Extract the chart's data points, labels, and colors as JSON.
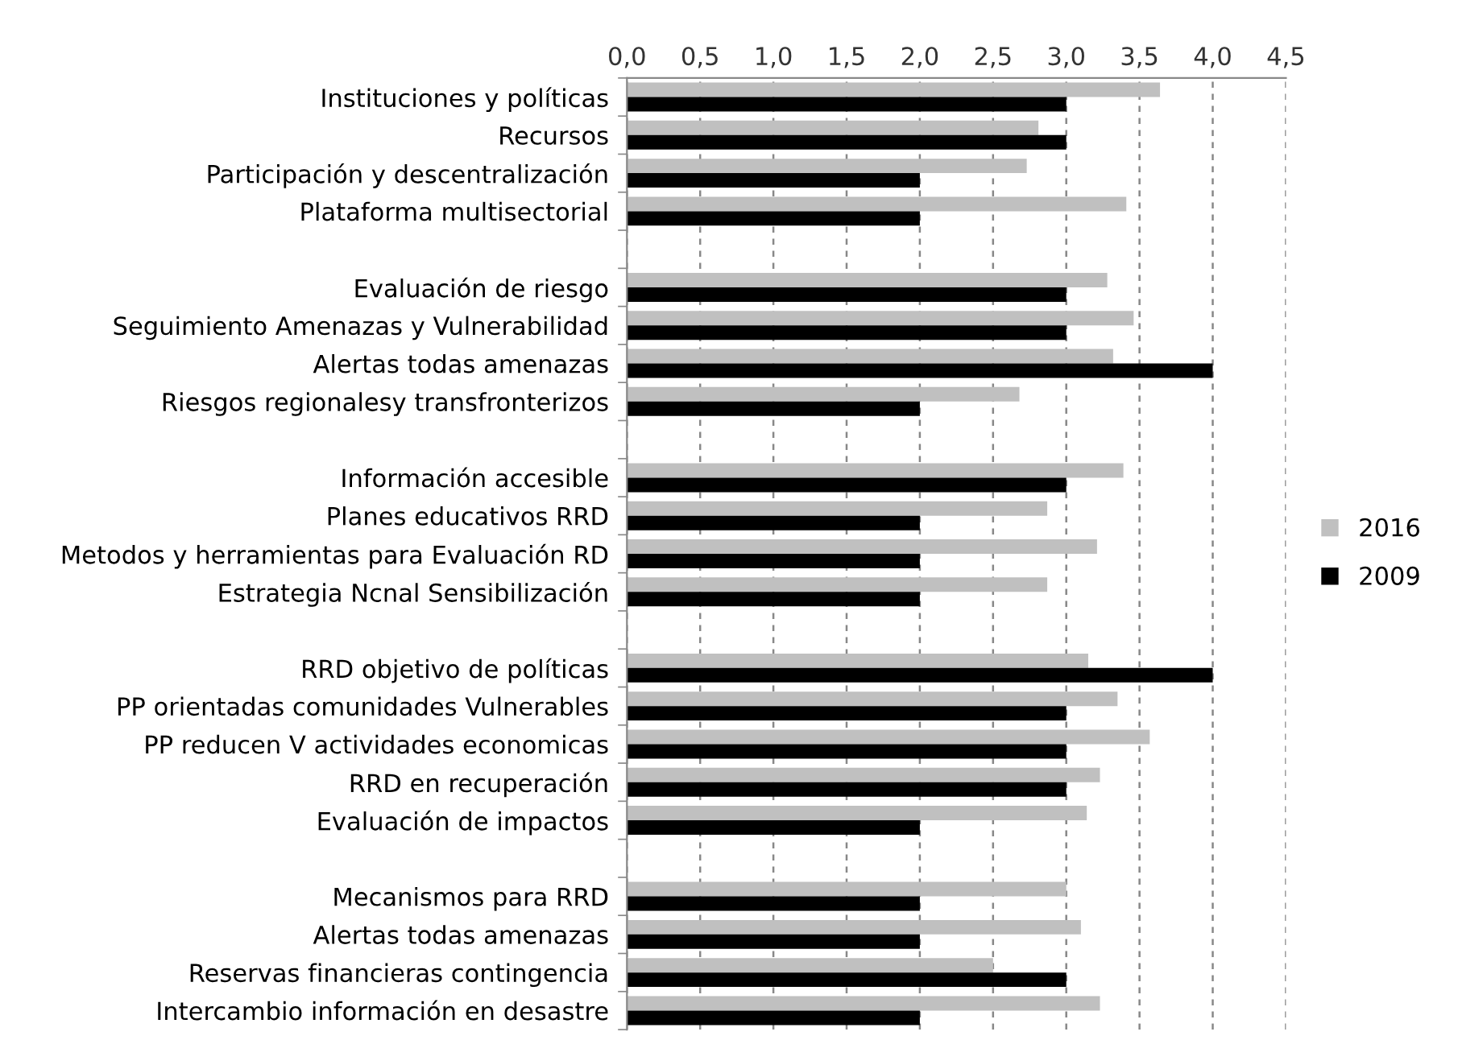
{
  "chart_data": {
    "type": "bar",
    "orientation": "horizontal",
    "categories": [
      "Instituciones y políticas",
      "Recursos",
      "Participación y descentralización",
      "Plataforma multisectorial",
      null,
      "Evaluación de riesgo",
      "Seguimiento Amenazas y Vulnerabilidad",
      "Alertas todas amenazas",
      "Riesgos regionalesy transfronterizos",
      null,
      "Información accesible",
      "Planes educativos RRD",
      "Metodos y herramientas para Evaluación RD",
      "Estrategia Ncnal Sensibilización",
      null,
      "RRD objetivo de políticas",
      "PP orientadas comunidades Vulnerables",
      "PP reducen V actividades economicas",
      "RRD en recuperación",
      "Evaluación de impactos",
      null,
      "Mecanismos para RRD",
      "Alertas todas amenazas",
      "Reservas financieras contingencia",
      "Intercambio información en desastre"
    ],
    "series": [
      {
        "name": "2016",
        "color": "#c0c0c0",
        "values": [
          3.64,
          2.81,
          2.73,
          3.41,
          null,
          3.28,
          3.46,
          3.32,
          2.68,
          null,
          3.39,
          2.87,
          3.21,
          2.87,
          null,
          3.15,
          3.35,
          3.57,
          3.23,
          3.14,
          null,
          3.0,
          3.1,
          2.5,
          3.23
        ]
      },
      {
        "name": "2009",
        "color": "#000000",
        "values": [
          3,
          3,
          2,
          2,
          null,
          3,
          3,
          4,
          2,
          null,
          3,
          2,
          2,
          2,
          null,
          4,
          3,
          3,
          3,
          2,
          null,
          2,
          2,
          3,
          2
        ]
      }
    ],
    "xlim": [
      0,
      4.5
    ],
    "xticks": [
      {
        "value": 0,
        "label": "0,0"
      },
      {
        "value": 0.5,
        "label": "0,5"
      },
      {
        "value": 1,
        "label": "1,0"
      },
      {
        "value": 1.5,
        "label": "1,5"
      },
      {
        "value": 2,
        "label": "2,0"
      },
      {
        "value": 2.5,
        "label": "2,5"
      },
      {
        "value": 3,
        "label": "3,0"
      },
      {
        "value": 3.5,
        "label": "3,5"
      },
      {
        "value": 4,
        "label": "4,0"
      },
      {
        "value": 4.5,
        "label": "4,5"
      }
    ],
    "grid": "x",
    "legend": "right"
  }
}
